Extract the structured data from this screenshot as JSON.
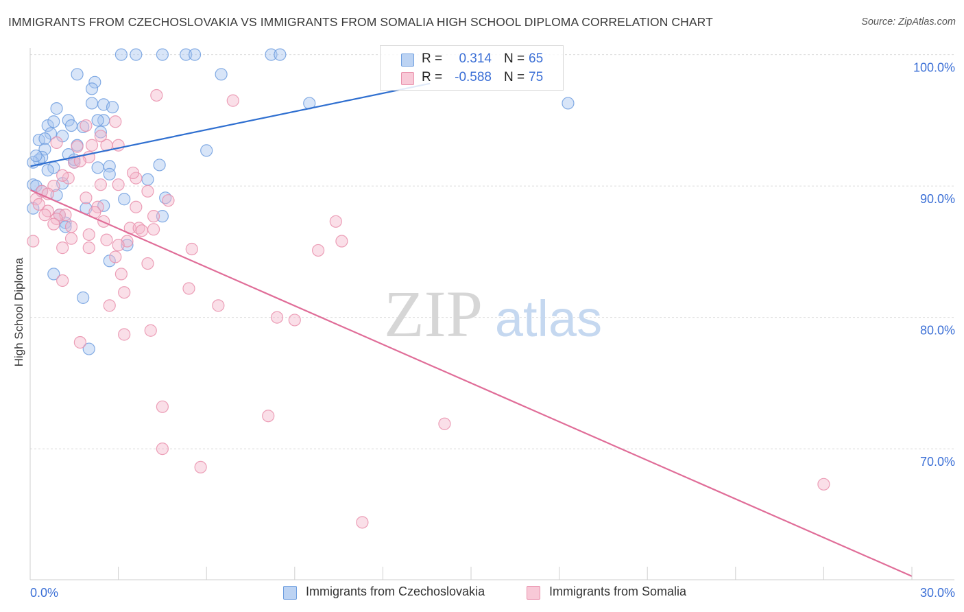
{
  "title": "IMMIGRANTS FROM CZECHOSLOVAKIA VS IMMIGRANTS FROM SOMALIA HIGH SCHOOL DIPLOMA CORRELATION CHART",
  "source": "Source: ZipAtlas.com",
  "watermark": {
    "zip": "ZIP",
    "atlas": "atlas"
  },
  "legend_top": {
    "r_label": "R =",
    "n_label": "N =",
    "rows": [
      {
        "r": "0.314",
        "n": "65"
      },
      {
        "r": "-0.588",
        "n": "75"
      }
    ]
  },
  "legend_bottom": [
    "Immigrants from Czechoslovakia",
    "Immigrants from Somalia"
  ],
  "colors": {
    "blue_fill": "#a9c6ef",
    "blue_stroke": "#6e9edf",
    "blue_line": "#2f6fd0",
    "pink_fill": "#f5b8cb",
    "pink_stroke": "#e98fab",
    "pink_line": "#e06d98",
    "tick_label": "#3b6fd6",
    "grid": "#dcdcdc"
  },
  "chart_data": {
    "type": "scatter",
    "title": "IMMIGRANTS FROM CZECHOSLOVAKIA VS IMMIGRANTS FROM SOMALIA HIGH SCHOOL DIPLOMA CORRELATION CHART",
    "xlabel": "",
    "ylabel": "High School Diploma",
    "xlim": [
      0,
      30
    ],
    "ylim": [
      60,
      101
    ],
    "x_tick_labels": [
      "0.0%",
      "30.0%"
    ],
    "y_ticks": [
      70,
      80,
      90,
      100
    ],
    "y_tick_labels": [
      "70.0%",
      "80.0%",
      "90.0%",
      "100.0%"
    ],
    "grid": true,
    "legend_position": "top-center",
    "series": [
      {
        "name": "Immigrants from Czechoslovakia",
        "r": 0.314,
        "n": 65,
        "trend": {
          "x": [
            0,
            13.6
          ],
          "y": [
            91.5,
            97.8
          ]
        },
        "points": [
          [
            3.1,
            100
          ],
          [
            3.6,
            100
          ],
          [
            4.5,
            100
          ],
          [
            5.3,
            100
          ],
          [
            5.6,
            100
          ],
          [
            8.2,
            100
          ],
          [
            8.5,
            100
          ],
          [
            1.6,
            98.5
          ],
          [
            6.5,
            98.5
          ],
          [
            2.2,
            97.9
          ],
          [
            2.1,
            97.4
          ],
          [
            2.1,
            96.3
          ],
          [
            2.5,
            96.2
          ],
          [
            0.9,
            95.9
          ],
          [
            9.5,
            96.3
          ],
          [
            18.3,
            96.3
          ],
          [
            0.6,
            94.6
          ],
          [
            1.3,
            95.0
          ],
          [
            2.5,
            95.0
          ],
          [
            1.4,
            94.6
          ],
          [
            1.8,
            94.5
          ],
          [
            0.7,
            94.0
          ],
          [
            1.1,
            93.8
          ],
          [
            2.4,
            94.1
          ],
          [
            0.3,
            93.5
          ],
          [
            0.5,
            93.6
          ],
          [
            0.5,
            92.8
          ],
          [
            0.4,
            92.2
          ],
          [
            0.3,
            92.0
          ],
          [
            1.3,
            92.4
          ],
          [
            0.1,
            91.8
          ],
          [
            6.0,
            92.7
          ],
          [
            1.5,
            91.8
          ],
          [
            2.3,
            91.4
          ],
          [
            2.7,
            91.5
          ],
          [
            4.4,
            91.6
          ],
          [
            0.8,
            91.4
          ],
          [
            2.7,
            90.9
          ],
          [
            1.1,
            90.2
          ],
          [
            0.1,
            90.1
          ],
          [
            0.9,
            89.3
          ],
          [
            3.2,
            89.0
          ],
          [
            4.6,
            89.1
          ],
          [
            2.5,
            88.5
          ],
          [
            1.9,
            88.3
          ],
          [
            4.5,
            87.7
          ],
          [
            1.2,
            87.2
          ],
          [
            1.2,
            86.9
          ],
          [
            3.3,
            85.5
          ],
          [
            0.1,
            88.3
          ],
          [
            2.7,
            84.3
          ],
          [
            0.8,
            83.3
          ],
          [
            1.8,
            81.5
          ],
          [
            2.0,
            77.6
          ],
          [
            0.2,
            90.0
          ],
          [
            0.4,
            89.6
          ],
          [
            1.6,
            93.1
          ],
          [
            2.3,
            95.0
          ],
          [
            0.2,
            92.3
          ],
          [
            0.8,
            94.9
          ],
          [
            2.8,
            96.0
          ],
          [
            4.0,
            90.5
          ],
          [
            1.0,
            87.8
          ],
          [
            0.6,
            91.2
          ],
          [
            1.5,
            92.0
          ]
        ]
      },
      {
        "name": "Immigrants from Somalia",
        "r": -0.588,
        "n": 75,
        "trend": {
          "x": [
            0,
            30
          ],
          "y": [
            89.7,
            60.3
          ]
        },
        "points": [
          [
            4.3,
            96.9
          ],
          [
            6.9,
            96.5
          ],
          [
            2.9,
            94.9
          ],
          [
            1.9,
            94.6
          ],
          [
            1.6,
            93.0
          ],
          [
            2.1,
            93.1
          ],
          [
            2.6,
            93.1
          ],
          [
            3.0,
            93.1
          ],
          [
            2.0,
            92.2
          ],
          [
            1.5,
            91.8
          ],
          [
            1.3,
            90.6
          ],
          [
            3.6,
            90.6
          ],
          [
            2.4,
            90.1
          ],
          [
            3.0,
            90.1
          ],
          [
            0.8,
            90.0
          ],
          [
            0.4,
            89.6
          ],
          [
            4.0,
            89.6
          ],
          [
            0.6,
            89.4
          ],
          [
            4.7,
            88.9
          ],
          [
            1.9,
            89.1
          ],
          [
            2.3,
            88.4
          ],
          [
            3.6,
            88.4
          ],
          [
            0.6,
            88.1
          ],
          [
            0.5,
            87.8
          ],
          [
            1.0,
            87.8
          ],
          [
            1.2,
            87.8
          ],
          [
            0.9,
            87.5
          ],
          [
            4.2,
            87.7
          ],
          [
            10.4,
            87.3
          ],
          [
            2.5,
            87.3
          ],
          [
            1.4,
            86.9
          ],
          [
            3.4,
            86.8
          ],
          [
            3.7,
            86.8
          ],
          [
            4.2,
            86.7
          ],
          [
            2.0,
            86.3
          ],
          [
            2.6,
            85.9
          ],
          [
            3.3,
            85.8
          ],
          [
            10.6,
            85.8
          ],
          [
            2.0,
            85.3
          ],
          [
            3.0,
            85.5
          ],
          [
            5.5,
            85.2
          ],
          [
            9.8,
            85.1
          ],
          [
            1.1,
            85.3
          ],
          [
            4.0,
            84.1
          ],
          [
            3.1,
            83.3
          ],
          [
            1.1,
            82.8
          ],
          [
            5.4,
            82.2
          ],
          [
            3.2,
            81.9
          ],
          [
            6.4,
            80.9
          ],
          [
            2.7,
            80.9
          ],
          [
            8.4,
            80.0
          ],
          [
            9.0,
            79.8
          ],
          [
            4.1,
            79.0
          ],
          [
            3.2,
            78.7
          ],
          [
            1.7,
            78.1
          ],
          [
            4.5,
            73.2
          ],
          [
            8.1,
            72.5
          ],
          [
            14.1,
            71.9
          ],
          [
            4.5,
            70.0
          ],
          [
            5.8,
            68.6
          ],
          [
            27.0,
            67.3
          ],
          [
            11.3,
            64.4
          ],
          [
            0.1,
            85.8
          ],
          [
            0.2,
            89.0
          ],
          [
            0.8,
            87.1
          ],
          [
            1.1,
            90.8
          ],
          [
            2.2,
            88.0
          ],
          [
            3.8,
            86.6
          ],
          [
            2.4,
            93.8
          ],
          [
            0.9,
            93.3
          ],
          [
            1.7,
            91.9
          ],
          [
            3.5,
            91.0
          ],
          [
            0.3,
            88.6
          ],
          [
            2.9,
            84.6
          ],
          [
            1.4,
            86.0
          ]
        ]
      }
    ]
  }
}
